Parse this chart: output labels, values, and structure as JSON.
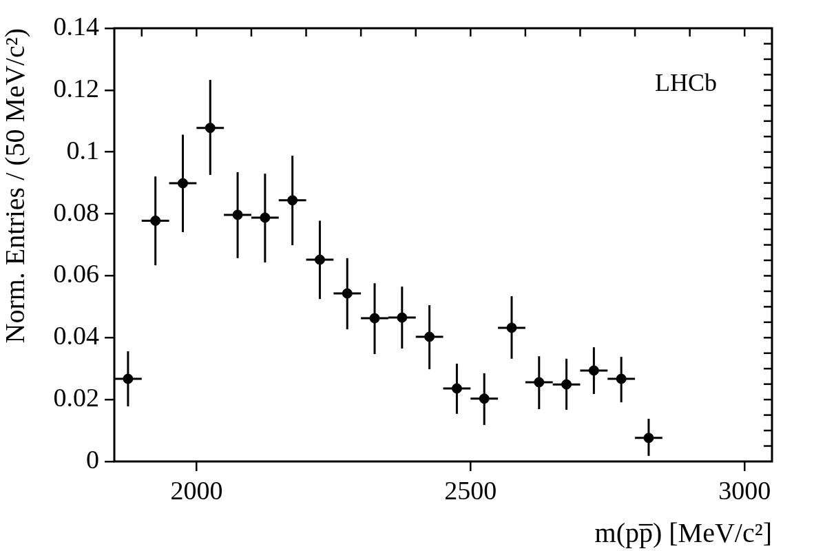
{
  "chart_data": {
    "type": "scatter",
    "xlabel": "m(pp̅) [MeV/c²]",
    "ylabel": "Norm. Entries / (50 MeV/c²)",
    "annotations": [
      "LHCb"
    ],
    "x": [
      1875,
      1925,
      1975,
      2025,
      2075,
      2125,
      2175,
      2225,
      2275,
      2325,
      2375,
      2425,
      2475,
      2525,
      2575,
      2625,
      2675,
      2725,
      2775,
      2825
    ],
    "values": [
      0.0267,
      0.0778,
      0.0899,
      0.1078,
      0.0797,
      0.0788,
      0.0844,
      0.0652,
      0.0543,
      0.0463,
      0.0465,
      0.0403,
      0.0236,
      0.0203,
      0.0432,
      0.0256,
      0.0249,
      0.0294,
      0.0267,
      0.0076
    ],
    "errors": [
      [
        0.0178,
        0.0356
      ],
      [
        0.0634,
        0.0921
      ],
      [
        0.0741,
        0.1056
      ],
      [
        0.0926,
        0.1233
      ],
      [
        0.0657,
        0.0935
      ],
      [
        0.0643,
        0.093
      ],
      [
        0.0699,
        0.0988
      ],
      [
        0.0525,
        0.0778
      ],
      [
        0.0427,
        0.0657
      ],
      [
        0.0347,
        0.0576
      ],
      [
        0.0365,
        0.0565
      ],
      [
        0.0298,
        0.0505
      ],
      [
        0.0154,
        0.0316
      ],
      [
        0.0118,
        0.0285
      ],
      [
        0.0332,
        0.0534
      ],
      [
        0.0169,
        0.034
      ],
      [
        0.0167,
        0.0332
      ],
      [
        0.0218,
        0.0369
      ],
      [
        0.0191,
        0.0338
      ],
      [
        0.0018,
        0.0138
      ]
    ],
    "xerrors": [
      25,
      25,
      25,
      25,
      25,
      25,
      25,
      25,
      25,
      25,
      25,
      25,
      25,
      25,
      25,
      25,
      25,
      25,
      25,
      25
    ],
    "color": "#000000",
    "marker": "circle",
    "grid": false,
    "legend": false,
    "xlim": [
      1850,
      3050
    ],
    "xticks": [
      {
        "value": 1900,
        "label": null
      },
      2000,
      {
        "value": 2100,
        "label": null
      },
      {
        "value": 2200,
        "label": null
      },
      {
        "value": 2300,
        "label": null
      },
      {
        "value": 2400,
        "label": null
      },
      2500,
      {
        "value": 2600,
        "label": null
      },
      {
        "value": 2700,
        "label": null
      },
      {
        "value": 2800,
        "label": null
      },
      {
        "value": 2900,
        "label": null
      },
      3000
    ],
    "ylim": [
      0,
      0.14
    ],
    "yticks": [
      0,
      {
        "value": 0.005,
        "label": null
      },
      {
        "value": 0.01,
        "label": null
      },
      {
        "value": 0.015,
        "label": null
      },
      0.02,
      {
        "value": 0.025,
        "label": null
      },
      {
        "value": 0.03,
        "label": null
      },
      {
        "value": 0.035,
        "label": null
      },
      0.04,
      {
        "value": 0.045,
        "label": null
      },
      {
        "value": 0.05,
        "label": null
      },
      {
        "value": 0.055,
        "label": null
      },
      0.06,
      {
        "value": 0.065,
        "label": null
      },
      {
        "value": 0.07,
        "label": null
      },
      {
        "value": 0.075,
        "label": null
      },
      0.08,
      {
        "value": 0.085,
        "label": null
      },
      {
        "value": 0.09,
        "label": null
      },
      {
        "value": 0.095,
        "label": null
      },
      0.1,
      {
        "value": 0.105,
        "label": null
      },
      {
        "value": 0.11,
        "label": null
      },
      {
        "value": 0.115,
        "label": null
      },
      0.12,
      {
        "value": 0.125,
        "label": null
      },
      {
        "value": 0.13,
        "label": null
      },
      {
        "value": 0.135,
        "label": null
      },
      0.14
    ]
  }
}
